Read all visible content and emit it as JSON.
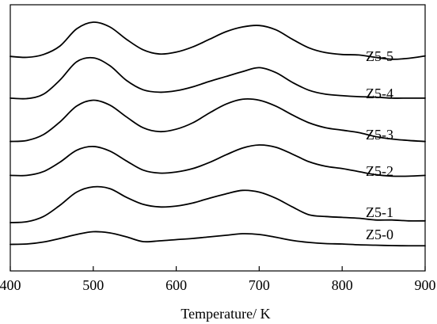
{
  "chart_data": {
    "type": "line",
    "title": "",
    "xlabel": "Temperature/ K",
    "ylabel": "",
    "xlim": [
      400,
      900
    ],
    "ticks": {
      "x": [
        "400",
        "500",
        "600",
        "700",
        "800",
        "900"
      ]
    },
    "grid": false,
    "y_units": "arbitrary (stacked, offset traces)",
    "series": [
      {
        "name": "Z5-5",
        "x": [
          400,
          420,
          440,
          460,
          480,
          500,
          520,
          540,
          560,
          580,
          600,
          620,
          640,
          660,
          680,
          700,
          720,
          740,
          760,
          780,
          800,
          820,
          840,
          860,
          880,
          900
        ],
        "y": [
          0.28,
          0.26,
          0.32,
          0.5,
          0.86,
          1.0,
          0.9,
          0.64,
          0.42,
          0.33,
          0.37,
          0.48,
          0.64,
          0.8,
          0.9,
          0.93,
          0.84,
          0.64,
          0.46,
          0.36,
          0.32,
          0.31,
          0.26,
          0.22,
          0.24,
          0.29
        ]
      },
      {
        "name": "Z5-4",
        "x": [
          400,
          420,
          440,
          460,
          480,
          500,
          520,
          540,
          560,
          580,
          600,
          620,
          640,
          660,
          680,
          700,
          720,
          740,
          760,
          780,
          800,
          820,
          840,
          860,
          880,
          900
        ],
        "y": [
          0.18,
          0.17,
          0.26,
          0.55,
          0.92,
          1.0,
          0.84,
          0.54,
          0.35,
          0.3,
          0.33,
          0.41,
          0.52,
          0.62,
          0.72,
          0.8,
          0.7,
          0.5,
          0.34,
          0.26,
          0.23,
          0.21,
          0.2,
          0.18,
          0.18,
          0.18
        ]
      },
      {
        "name": "Z5-3",
        "x": [
          400,
          420,
          440,
          460,
          480,
          500,
          520,
          540,
          560,
          580,
          600,
          620,
          640,
          660,
          680,
          700,
          720,
          740,
          760,
          780,
          800,
          820,
          840,
          860,
          880,
          900
        ],
        "y": [
          0.12,
          0.14,
          0.26,
          0.52,
          0.84,
          0.96,
          0.86,
          0.62,
          0.4,
          0.32,
          0.37,
          0.5,
          0.7,
          0.88,
          0.98,
          0.96,
          0.84,
          0.66,
          0.5,
          0.4,
          0.35,
          0.3,
          0.22,
          0.17,
          0.14,
          0.12
        ]
      },
      {
        "name": "Z5-2",
        "x": [
          400,
          420,
          440,
          460,
          480,
          500,
          520,
          540,
          560,
          580,
          600,
          620,
          640,
          660,
          680,
          700,
          720,
          740,
          760,
          780,
          800,
          820,
          840,
          860,
          880,
          900
        ],
        "y": [
          0.2,
          0.2,
          0.3,
          0.55,
          0.86,
          0.96,
          0.84,
          0.58,
          0.34,
          0.26,
          0.29,
          0.38,
          0.54,
          0.74,
          0.92,
          1.0,
          0.94,
          0.76,
          0.56,
          0.44,
          0.38,
          0.3,
          0.22,
          0.18,
          0.18,
          0.2
        ]
      },
      {
        "name": "Z5-1",
        "x": [
          400,
          420,
          440,
          460,
          480,
          500,
          520,
          540,
          560,
          580,
          600,
          620,
          640,
          660,
          680,
          700,
          720,
          740,
          760,
          780,
          800,
          820,
          840,
          860,
          880,
          900
        ],
        "y": [
          0.0,
          0.02,
          0.14,
          0.4,
          0.7,
          0.82,
          0.78,
          0.58,
          0.42,
          0.36,
          0.38,
          0.45,
          0.56,
          0.66,
          0.74,
          0.7,
          0.56,
          0.36,
          0.18,
          0.14,
          0.12,
          0.1,
          0.06,
          0.06,
          0.04,
          0.04
        ]
      },
      {
        "name": "Z5-0",
        "x": [
          400,
          420,
          440,
          460,
          480,
          500,
          520,
          540,
          560,
          580,
          600,
          620,
          640,
          660,
          680,
          700,
          720,
          740,
          760,
          780,
          800,
          820,
          840,
          860,
          880,
          900
        ],
        "y": [
          0.1,
          0.12,
          0.22,
          0.4,
          0.6,
          0.74,
          0.68,
          0.48,
          0.24,
          0.28,
          0.34,
          0.4,
          0.48,
          0.56,
          0.64,
          0.6,
          0.46,
          0.3,
          0.2,
          0.14,
          0.12,
          0.08,
          0.06,
          0.04,
          0.03,
          0.03
        ]
      }
    ]
  }
}
